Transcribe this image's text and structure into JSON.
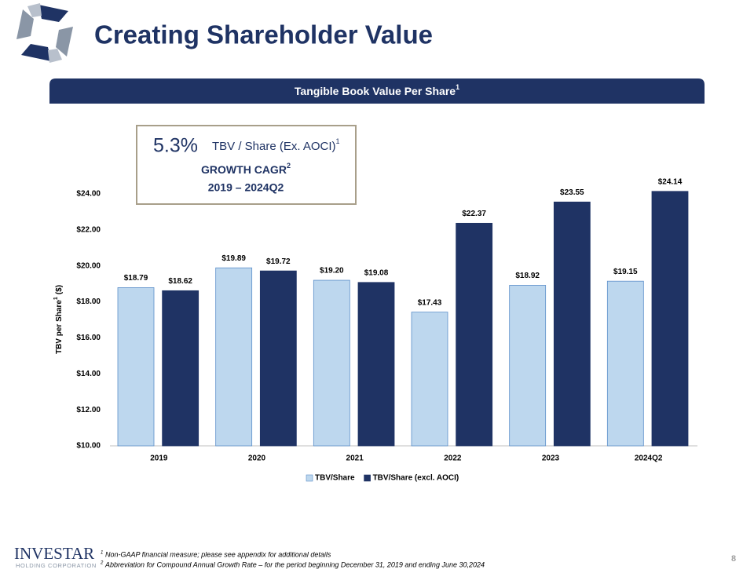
{
  "header": {
    "title": "Creating Shareholder Value",
    "banner": "Tangible Book Value Per Share",
    "banner_note": "1"
  },
  "callout": {
    "rate": "5.3%",
    "measure": "TBV / Share (Ex. AOCI)",
    "measure_note": "1",
    "label": "GROWTH CAGR",
    "label_note": "2",
    "period": "2019 – 2024Q2"
  },
  "chart_data": {
    "type": "bar",
    "y_label": "TBV per Share",
    "y_label_note": "1",
    "y_label_unit": "($)",
    "categories": [
      "2019",
      "2020",
      "2021",
      "2022",
      "2023",
      "2024Q2"
    ],
    "series": [
      {
        "name": "TBV/Share",
        "color": "#bdd7ee",
        "values": [
          18.79,
          19.89,
          19.2,
          17.43,
          18.92,
          19.15
        ],
        "value_labels": [
          "$18.79",
          "$19.89",
          "$19.20",
          "$17.43",
          "$18.92",
          "$19.15"
        ]
      },
      {
        "name": "TBV/Share (excl. AOCI)",
        "color": "#1f3364",
        "values": [
          18.62,
          19.72,
          19.08,
          22.37,
          23.55,
          24.14
        ],
        "value_labels": [
          "$18.62",
          "$19.72",
          "$19.08",
          "$22.37",
          "$23.55",
          "$24.14"
        ]
      }
    ],
    "ylim": [
      10,
      24
    ],
    "yticks": [
      {
        "value": 10,
        "label": "$10.00"
      },
      {
        "value": 12,
        "label": "$12.00"
      },
      {
        "value": 14,
        "label": "$14.00"
      },
      {
        "value": 16,
        "label": "$16.00"
      },
      {
        "value": 18,
        "label": "$18.00"
      },
      {
        "value": 20,
        "label": "$20.00"
      },
      {
        "value": 22,
        "label": "$22.00"
      },
      {
        "value": 24,
        "label": "$24.00"
      }
    ],
    "grid": false,
    "legend": "bottom"
  },
  "footnotes": [
    {
      "mark": "1",
      "text": "Non-GAAP financial measure; please see appendix for additional details"
    },
    {
      "mark": "2",
      "text": "Abbreviation for Compound Annual Growth Rate – for the period beginning December 31, 2019 and ending June 30,2024"
    }
  ],
  "logo": {
    "name": "INVESTAR",
    "sub": "HOLDING CORPORATION"
  },
  "page_number": "8"
}
